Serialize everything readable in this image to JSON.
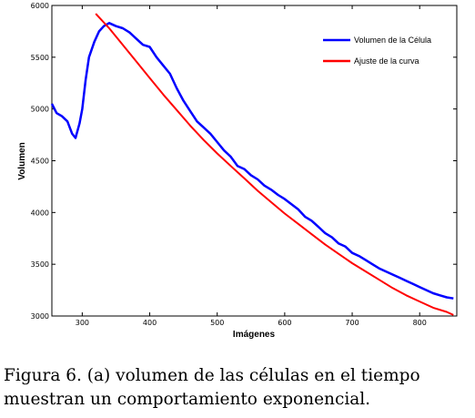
{
  "chart_data": {
    "type": "line",
    "title": "",
    "xlabel": "Imágenes",
    "ylabel": "Volumen",
    "xlim": [
      255,
      855
    ],
    "ylim": [
      3000,
      6000
    ],
    "xticks": [
      300,
      400,
      500,
      600,
      700,
      800
    ],
    "yticks": [
      3000,
      3500,
      4000,
      4500,
      5000,
      5500,
      6000
    ],
    "grid": false,
    "legend_position": "top-right",
    "series": [
      {
        "name": "Volumen de la Célula",
        "color": "#0000ff",
        "x": [
          255,
          262,
          270,
          278,
          285,
          290,
          296,
          300,
          305,
          310,
          318,
          325,
          332,
          340,
          350,
          360,
          370,
          380,
          390,
          400,
          410,
          420,
          430,
          440,
          450,
          460,
          470,
          480,
          490,
          500,
          510,
          520,
          530,
          540,
          550,
          560,
          570,
          580,
          590,
          600,
          610,
          620,
          630,
          640,
          650,
          660,
          670,
          680,
          690,
          700,
          710,
          720,
          730,
          740,
          750,
          760,
          770,
          780,
          790,
          800,
          810,
          820,
          830,
          840,
          850
        ],
        "y": [
          5050,
          4960,
          4930,
          4880,
          4760,
          4720,
          4860,
          5000,
          5280,
          5500,
          5650,
          5750,
          5800,
          5830,
          5800,
          5780,
          5740,
          5680,
          5620,
          5600,
          5500,
          5420,
          5340,
          5200,
          5080,
          4980,
          4880,
          4820,
          4760,
          4680,
          4600,
          4540,
          4450,
          4420,
          4360,
          4320,
          4260,
          4220,
          4170,
          4130,
          4080,
          4030,
          3960,
          3920,
          3860,
          3800,
          3760,
          3700,
          3670,
          3610,
          3580,
          3540,
          3500,
          3460,
          3430,
          3400,
          3370,
          3340,
          3310,
          3280,
          3250,
          3220,
          3200,
          3180,
          3170
        ]
      },
      {
        "name": "Ajuste de la curva",
        "color": "#ff0000",
        "x": [
          320,
          340,
          360,
          380,
          400,
          420,
          440,
          460,
          480,
          500,
          520,
          540,
          560,
          580,
          600,
          620,
          640,
          660,
          680,
          700,
          720,
          740,
          760,
          780,
          800,
          820,
          840,
          850
        ],
        "y": [
          5920,
          5780,
          5620,
          5460,
          5300,
          5140,
          4990,
          4840,
          4700,
          4570,
          4450,
          4330,
          4210,
          4100,
          3990,
          3890,
          3790,
          3690,
          3600,
          3510,
          3430,
          3350,
          3270,
          3200,
          3140,
          3080,
          3040,
          3010
        ]
      }
    ]
  },
  "caption": {
    "line1": "Figura 6.  (a) volumen de las células en el tiempo",
    "line2": "muestran un comportamiento exponencial."
  }
}
